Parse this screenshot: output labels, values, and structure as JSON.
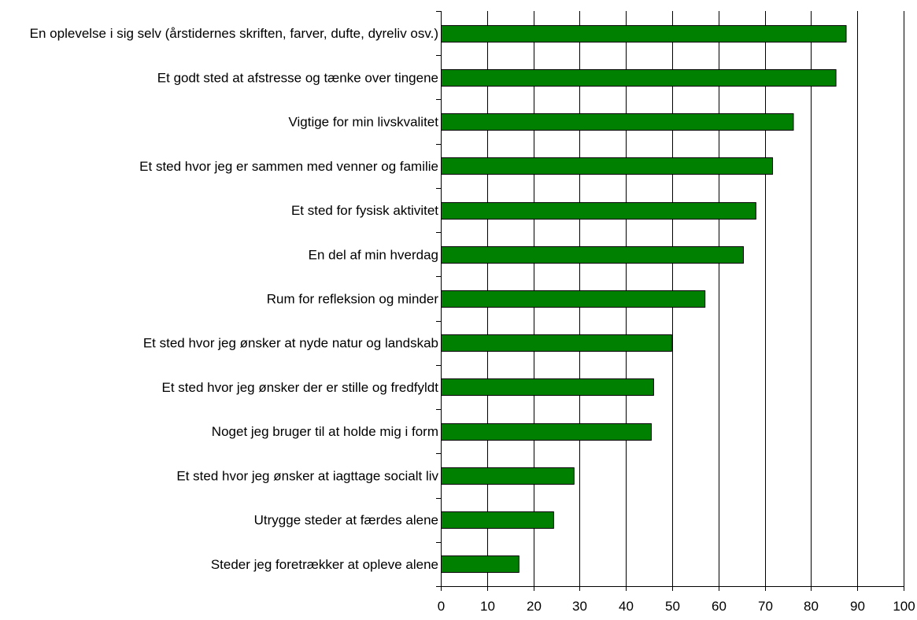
{
  "chart_data": {
    "type": "bar",
    "orientation": "horizontal",
    "categories": [
      "En oplevelse i sig selv (årstidernes skriften, farver, dufte, dyreliv osv.)",
      "Et godt sted at afstresse og tænke over tingene",
      "Vigtige for min livskvalitet",
      "Et sted hvor jeg er sammen med venner og familie",
      "Et sted for fysisk aktivitet",
      "En del af min hverdag",
      "Rum for refleksion og minder",
      "Et sted hvor jeg ønsker at nyde natur og landskab",
      "Et sted hvor jeg ønsker der er stille og fredfyldt",
      "Noget jeg bruger til at holde mig i form",
      "Et sted hvor jeg ønsker at iagttage socialt liv",
      "Utrygge steder at færdes alene",
      "Steder jeg foretrækker at opleve alene"
    ],
    "values": [
      87.5,
      85.3,
      76.1,
      71.6,
      68.0,
      65.3,
      57.0,
      49.8,
      45.9,
      45.4,
      28.7,
      24.3,
      16.8
    ],
    "xlim": [
      0,
      100
    ],
    "ticks": [
      "0",
      "10",
      "20",
      "30",
      "40",
      "50",
      "60",
      "70",
      "80",
      "90",
      "100"
    ],
    "tick_values": [
      0,
      10,
      20,
      30,
      40,
      50,
      60,
      70,
      80,
      90,
      100
    ],
    "grid": true,
    "legend": "none",
    "title": "",
    "xlabel": "",
    "ylabel": "",
    "colors": {
      "bar": "#008000",
      "grid": "#000000"
    }
  }
}
